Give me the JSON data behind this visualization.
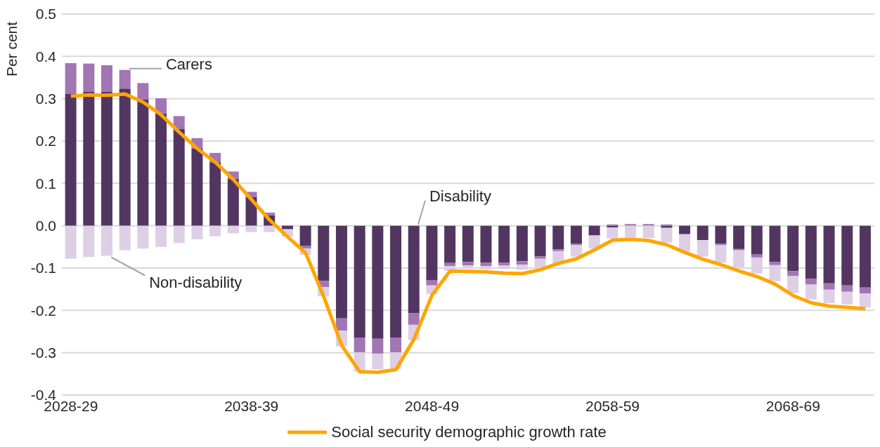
{
  "chart_data": {
    "type": "bar",
    "stacked": true,
    "ylabel": "Per cent",
    "categories": [
      "2028-29",
      null,
      null,
      null,
      null,
      null,
      null,
      null,
      null,
      null,
      "2038-39",
      null,
      null,
      null,
      null,
      null,
      null,
      null,
      null,
      null,
      "2048-49",
      null,
      null,
      null,
      null,
      null,
      null,
      null,
      null,
      null,
      "2058-59",
      null,
      null,
      null,
      null,
      null,
      null,
      null,
      null,
      null,
      "2068-69",
      null,
      null,
      null,
      null
    ],
    "series": [
      {
        "name": "Disability",
        "color": "#523661",
        "values": [
          0.311,
          0.316,
          0.317,
          0.324,
          0.298,
          0.265,
          0.228,
          0.182,
          0.15,
          0.111,
          0.068,
          0.025,
          -0.008,
          -0.048,
          -0.13,
          -0.219,
          -0.264,
          -0.267,
          -0.264,
          -0.207,
          -0.128,
          -0.088,
          -0.086,
          -0.087,
          -0.087,
          -0.084,
          -0.072,
          -0.056,
          -0.043,
          -0.023,
          -0.004,
          0,
          0,
          -0.005,
          -0.02,
          -0.034,
          -0.043,
          -0.055,
          -0.068,
          -0.086,
          -0.107,
          -0.125,
          -0.136,
          -0.141,
          -0.146
        ]
      },
      {
        "name": "Carers",
        "color": "#a275b3",
        "values": [
          0.073,
          0.067,
          0.062,
          0.044,
          0.039,
          0.036,
          0.031,
          0.025,
          0.022,
          0.017,
          0.012,
          0.006,
          -0.001,
          -0.006,
          -0.015,
          -0.029,
          -0.035,
          -0.035,
          -0.035,
          -0.027,
          -0.013,
          -0.007,
          -0.008,
          -0.008,
          -0.007,
          -0.008,
          -0.006,
          -0.004,
          -0.003,
          null,
          0.003,
          0.004,
          0.004,
          0.003,
          0,
          0,
          -0.003,
          -0.003,
          -0.007,
          -0.007,
          -0.012,
          -0.014,
          -0.015,
          -0.015,
          -0.014
        ]
      },
      {
        "name": "Non-disability",
        "color": "#ddd0e5",
        "values": [
          -0.078,
          -0.074,
          -0.071,
          -0.058,
          -0.054,
          -0.05,
          -0.041,
          -0.032,
          -0.025,
          -0.018,
          -0.015,
          -0.015,
          -0.017,
          -0.015,
          -0.022,
          -0.037,
          -0.046,
          -0.037,
          -0.039,
          -0.036,
          -0.02,
          -0.012,
          -0.005,
          -0.008,
          -0.008,
          -0.012,
          -0.02,
          -0.029,
          -0.027,
          -0.031,
          -0.026,
          -0.028,
          -0.029,
          -0.035,
          -0.041,
          -0.039,
          -0.041,
          -0.04,
          -0.038,
          -0.038,
          -0.04,
          -0.035,
          -0.032,
          -0.03,
          -0.033
        ]
      },
      {
        "name": "Social security demographic growth rate",
        "type": "line",
        "color": "#ffa500",
        "values": [
          0.306,
          0.309,
          0.308,
          0.311,
          0.292,
          0.262,
          0.221,
          0.182,
          0.15,
          0.109,
          0.062,
          0.014,
          -0.026,
          -0.064,
          -0.167,
          -0.283,
          -0.345,
          -0.346,
          -0.34,
          -0.268,
          -0.164,
          -0.107,
          -0.108,
          -0.109,
          -0.112,
          -0.113,
          -0.104,
          -0.089,
          -0.078,
          -0.057,
          -0.034,
          -0.032,
          -0.035,
          -0.045,
          -0.063,
          -0.079,
          -0.092,
          -0.107,
          -0.12,
          -0.138,
          -0.165,
          -0.182,
          -0.19,
          -0.193,
          -0.196
        ]
      }
    ],
    "ylim": [
      -0.4,
      0.5
    ],
    "yticks": [
      {
        "value": -0.4,
        "label": "-0.4"
      },
      {
        "value": -0.3,
        "label": "-0.3"
      },
      {
        "value": -0.2,
        "label": "-0.2"
      },
      {
        "value": -0.1,
        "label": "-0.1"
      },
      {
        "value": 0,
        "label": "0.0"
      },
      {
        "value": 0.1,
        "label": "0.1"
      },
      {
        "value": 0.2,
        "label": "0.2"
      },
      {
        "value": 0.3,
        "label": "0.3"
      },
      {
        "value": 0.4,
        "label": "0.4"
      },
      {
        "value": 0.5,
        "label": "0.5"
      }
    ],
    "grid": "y",
    "legend": "bottom",
    "marker": "none",
    "line_style": "solid"
  }
}
